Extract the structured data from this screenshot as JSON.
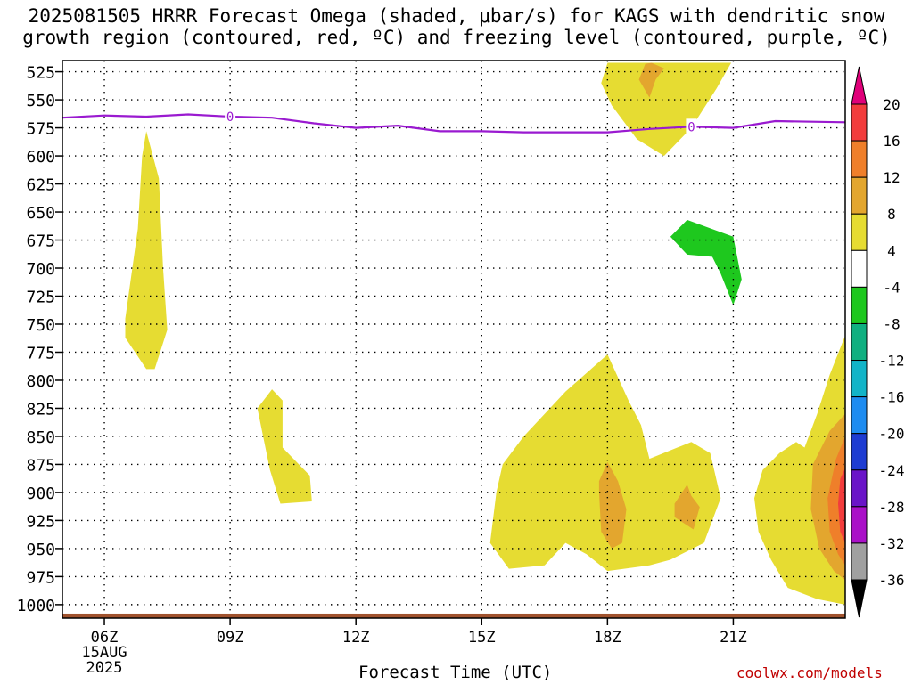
{
  "title": {
    "line1": "2025081505 HRRR Forecast Omega (shaded, μbar/s) for KAGS with dendritic snow",
    "line2": "growth region (contoured, red, ºC) and freezing level (contoured, purple, ºC)"
  },
  "footer": {
    "credit": "coolwx.com/models"
  },
  "chart_data": {
    "type": "heatmap",
    "xlabel": "Forecast Time (UTC)",
    "ylabel": "",
    "x_range": [
      5.0,
      23.67
    ],
    "y_range": [
      1012,
      515
    ],
    "grid": true,
    "x_ticks": [
      {
        "value": 6,
        "label": "06Z",
        "sub": [
          "15AUG",
          "2025"
        ]
      },
      {
        "value": 9,
        "label": "09Z"
      },
      {
        "value": 12,
        "label": "12Z"
      },
      {
        "value": 15,
        "label": "15Z"
      },
      {
        "value": 18,
        "label": "18Z"
      },
      {
        "value": 21,
        "label": "21Z"
      }
    ],
    "y_ticks": [
      525,
      550,
      575,
      600,
      625,
      650,
      675,
      700,
      725,
      750,
      775,
      800,
      825,
      850,
      875,
      900,
      925,
      950,
      975,
      1000
    ],
    "colorbar": {
      "levels": [
        {
          "from": 20,
          "to": 24,
          "color": "#e0007a"
        },
        {
          "from": 16,
          "to": 20,
          "color": "#f23c3c"
        },
        {
          "from": 12,
          "to": 16,
          "color": "#ef7f2a"
        },
        {
          "from": 8,
          "to": 12,
          "color": "#e3a62e"
        },
        {
          "from": 4,
          "to": 8,
          "color": "#e6dc32"
        },
        {
          "from": -4,
          "to": 4,
          "color": "#ffffff"
        },
        {
          "from": -8,
          "to": -4,
          "color": "#1ec81e"
        },
        {
          "from": -12,
          "to": -8,
          "color": "#10b080"
        },
        {
          "from": -16,
          "to": -12,
          "color": "#12b4c8"
        },
        {
          "from": -20,
          "to": -16,
          "color": "#1e8cf0"
        },
        {
          "from": -24,
          "to": -20,
          "color": "#1e3cd2"
        },
        {
          "from": -28,
          "to": -24,
          "color": "#6a14c8"
        },
        {
          "from": -32,
          "to": -28,
          "color": "#aa10c8"
        },
        {
          "from": -36,
          "to": -32,
          "color": "#a0a0a0"
        },
        {
          "from": -40,
          "to": -36,
          "color": "#000000"
        }
      ],
      "labels": [
        20,
        16,
        12,
        8,
        4,
        -4,
        -8,
        -12,
        -16,
        -20,
        -24,
        -28,
        -32,
        -36
      ]
    },
    "freezing_level": {
      "label": "0",
      "color": "#9a1ad0",
      "points": [
        [
          5.0,
          566
        ],
        [
          6.0,
          564
        ],
        [
          7.0,
          565
        ],
        [
          8.0,
          563
        ],
        [
          9.0,
          565
        ],
        [
          10.0,
          566
        ],
        [
          11.0,
          571
        ],
        [
          12.0,
          575
        ],
        [
          13.0,
          573
        ],
        [
          14.0,
          578
        ],
        [
          15.0,
          578
        ],
        [
          16.0,
          579
        ],
        [
          17.0,
          579
        ],
        [
          18.0,
          579
        ],
        [
          19.0,
          576
        ],
        [
          20.0,
          574
        ],
        [
          21.0,
          575
        ],
        [
          22.0,
          569
        ],
        [
          23.67,
          570
        ]
      ],
      "label_positions": [
        [
          9.0,
          565
        ],
        [
          20.0,
          574
        ]
      ]
    },
    "surface_color": "#a0522d",
    "surface_pressure": 1008,
    "shaded_regions": [
      {
        "value": 6,
        "points": [
          [
            7.0,
            578
          ],
          [
            7.3,
            620
          ],
          [
            7.4,
            700
          ],
          [
            7.5,
            755
          ],
          [
            7.2,
            790
          ],
          [
            7.0,
            790
          ],
          [
            6.5,
            762
          ],
          [
            6.5,
            745
          ],
          [
            6.8,
            665
          ],
          [
            6.9,
            600
          ]
        ]
      },
      {
        "value": 6,
        "points": [
          [
            10.0,
            808
          ],
          [
            10.25,
            818
          ],
          [
            10.25,
            860
          ],
          [
            10.9,
            885
          ],
          [
            10.95,
            908
          ],
          [
            10.2,
            910
          ],
          [
            9.95,
            880
          ],
          [
            9.65,
            825
          ]
        ]
      },
      {
        "value": 6,
        "points": [
          [
            18.9,
            517
          ],
          [
            18.0,
            517
          ],
          [
            17.85,
            535
          ],
          [
            18.1,
            555
          ],
          [
            18.7,
            585
          ],
          [
            19.35,
            600
          ],
          [
            20.0,
            575
          ],
          [
            20.6,
            540
          ],
          [
            20.95,
            517
          ]
        ]
      },
      {
        "value": 10,
        "points": [
          [
            19.05,
            517
          ],
          [
            18.9,
            518
          ],
          [
            18.75,
            532
          ],
          [
            19.0,
            548
          ],
          [
            19.15,
            532
          ],
          [
            19.35,
            522
          ]
        ]
      },
      {
        "value": -6,
        "points": [
          [
            19.5,
            672
          ],
          [
            19.9,
            657
          ],
          [
            21.0,
            672
          ],
          [
            21.2,
            710
          ],
          [
            21.0,
            733
          ],
          [
            20.7,
            705
          ],
          [
            20.5,
            690
          ],
          [
            19.9,
            688
          ]
        ]
      },
      {
        "value": 6,
        "points": [
          [
            18.0,
            777
          ],
          [
            17.0,
            810
          ],
          [
            16.0,
            850
          ],
          [
            15.5,
            875
          ],
          [
            15.35,
            900
          ],
          [
            15.2,
            945
          ],
          [
            15.65,
            968
          ],
          [
            16.5,
            965
          ],
          [
            17.0,
            945
          ],
          [
            17.5,
            955
          ],
          [
            18.0,
            970
          ],
          [
            19.0,
            965
          ],
          [
            19.5,
            960
          ],
          [
            20.3,
            945
          ],
          [
            20.7,
            905
          ],
          [
            20.45,
            865
          ],
          [
            20.0,
            855
          ],
          [
            19.0,
            870
          ],
          [
            18.8,
            840
          ],
          [
            18.5,
            818
          ]
        ]
      },
      {
        "value": 10,
        "points": [
          [
            18.0,
            873
          ],
          [
            18.25,
            890
          ],
          [
            18.45,
            915
          ],
          [
            18.35,
            945
          ],
          [
            18.1,
            950
          ],
          [
            17.85,
            935
          ],
          [
            17.8,
            900
          ],
          [
            17.8,
            890
          ]
        ]
      },
      {
        "value": 10,
        "points": [
          [
            19.9,
            893
          ],
          [
            20.0,
            903
          ],
          [
            20.2,
            913
          ],
          [
            20.05,
            933
          ],
          [
            19.6,
            922
          ],
          [
            19.6,
            910
          ]
        ]
      },
      {
        "value": 6,
        "points": [
          [
            23.67,
            760
          ],
          [
            23.3,
            795
          ],
          [
            23.0,
            830
          ],
          [
            22.7,
            860
          ],
          [
            22.5,
            855
          ],
          [
            22.1,
            865
          ],
          [
            21.7,
            880
          ],
          [
            21.5,
            905
          ],
          [
            21.6,
            935
          ],
          [
            21.9,
            960
          ],
          [
            22.3,
            985
          ],
          [
            23.0,
            995
          ],
          [
            23.67,
            1000
          ]
        ]
      },
      {
        "value": 10,
        "points": [
          [
            23.67,
            830
          ],
          [
            23.3,
            845
          ],
          [
            22.9,
            875
          ],
          [
            22.85,
            915
          ],
          [
            23.05,
            950
          ],
          [
            23.4,
            970
          ],
          [
            23.67,
            978
          ]
        ]
      },
      {
        "value": 14,
        "points": [
          [
            23.67,
            850
          ],
          [
            23.45,
            870
          ],
          [
            23.25,
            905
          ],
          [
            23.3,
            935
          ],
          [
            23.5,
            955
          ],
          [
            23.67,
            965
          ]
        ]
      },
      {
        "value": 18,
        "points": [
          [
            23.67,
            878
          ],
          [
            23.55,
            888
          ],
          [
            23.5,
            910
          ],
          [
            23.55,
            935
          ],
          [
            23.67,
            945
          ]
        ]
      }
    ]
  }
}
